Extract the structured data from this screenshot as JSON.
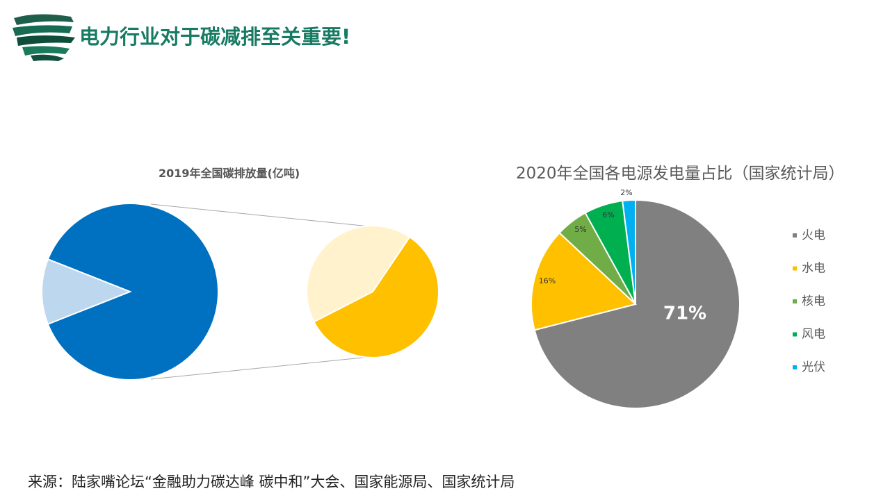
{
  "header": {
    "title": "电力行业对于碳减排至关重要!",
    "accent_color": "#177a63"
  },
  "chart_data": [
    {
      "type": "pie",
      "title": "2019年全国碳排放量(亿吨)",
      "variant": "bar-of-pie",
      "values": [
        88,
        12
      ],
      "colors": [
        "#0070c0",
        "#bdd7ee"
      ],
      "breakout": {
        "values": [
          58,
          42
        ],
        "colors": [
          "#ffc000",
          "#fff2cc"
        ]
      }
    },
    {
      "type": "pie",
      "title": "2020年全国各电源发电量占比（国家统计局）",
      "legend_position": "right",
      "categories": [
        "火电",
        "水电",
        "核电",
        "风电",
        "光伏"
      ],
      "values": [
        71,
        16,
        5,
        6,
        2
      ],
      "labels": [
        "71%",
        "16%",
        "5%",
        "6%",
        "2%"
      ],
      "colors": [
        "#808080",
        "#ffc000",
        "#70ad47",
        "#00b050",
        "#00b0f0"
      ]
    }
  ],
  "footer": {
    "source": "来源：陆家嘴论坛“金融助力碳达峰 碳中和”大会、国家能源局、国家统计局"
  }
}
